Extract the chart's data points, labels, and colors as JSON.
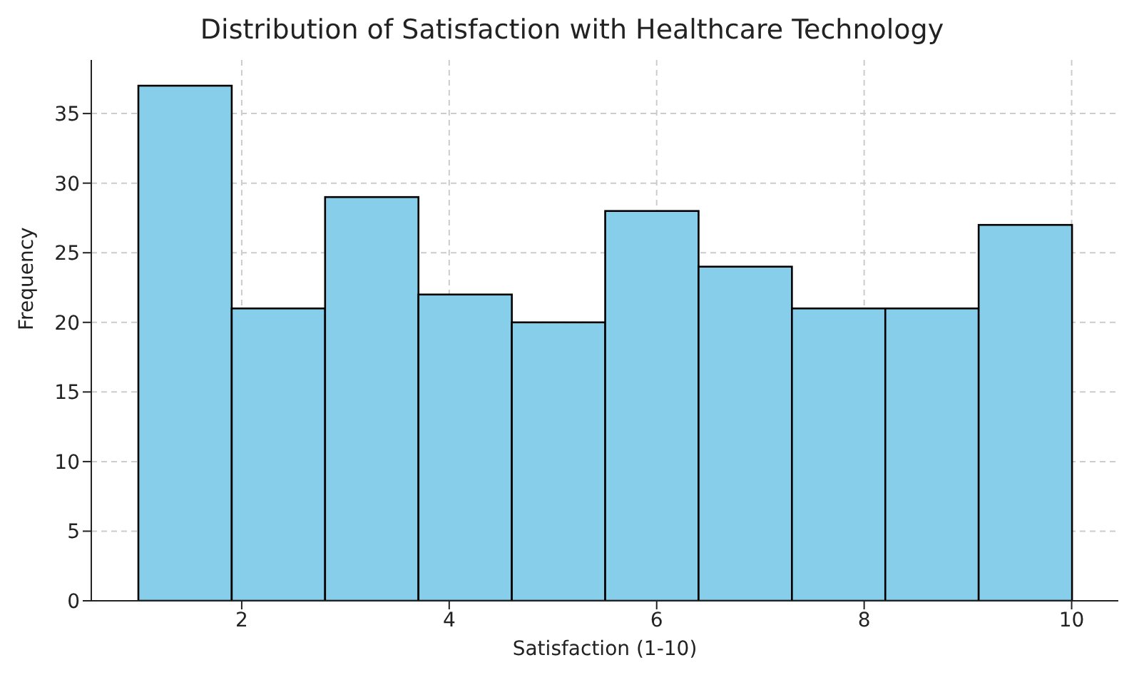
{
  "chart_data": {
    "type": "histogram",
    "title": "Distribution of Satisfaction with Healthcare Technology",
    "xlabel": "Satisfaction (1-10)",
    "ylabel": "Frequency",
    "bins": [
      1,
      1.9,
      2.8,
      3.7,
      4.6,
      5.5,
      6.4,
      7.3,
      8.2,
      9.1,
      10
    ],
    "values": [
      37,
      21,
      29,
      22,
      20,
      28,
      24,
      21,
      21,
      27
    ],
    "color": "#87ceeb",
    "xlim": [
      0.55,
      10.45
    ],
    "xticks": [
      2,
      4,
      6,
      8,
      10
    ],
    "ylim": [
      0,
      38.85
    ],
    "yticks": [
      0,
      5,
      10,
      15,
      20,
      25,
      30,
      35
    ],
    "grid": true
  }
}
